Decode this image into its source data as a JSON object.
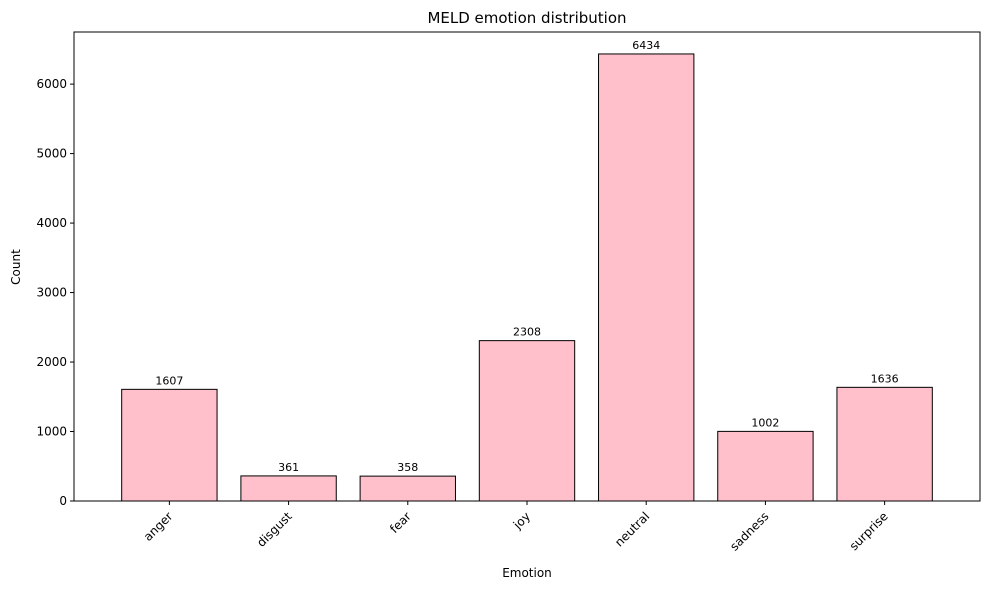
{
  "chart_data": {
    "type": "bar",
    "title": "MELD emotion distribution",
    "xlabel": "Emotion",
    "ylabel": "Count",
    "categories": [
      "anger",
      "disgust",
      "fear",
      "joy",
      "neutral",
      "sadness",
      "surprise"
    ],
    "values": [
      1607,
      361,
      358,
      2308,
      6434,
      1002,
      1636
    ],
    "ylim": [
      0,
      6750
    ],
    "yticks": [
      0,
      1000,
      2000,
      3000,
      4000,
      5000,
      6000
    ],
    "grid": false,
    "bar_color": "#ffc0cb",
    "edge_color": "#000000"
  }
}
